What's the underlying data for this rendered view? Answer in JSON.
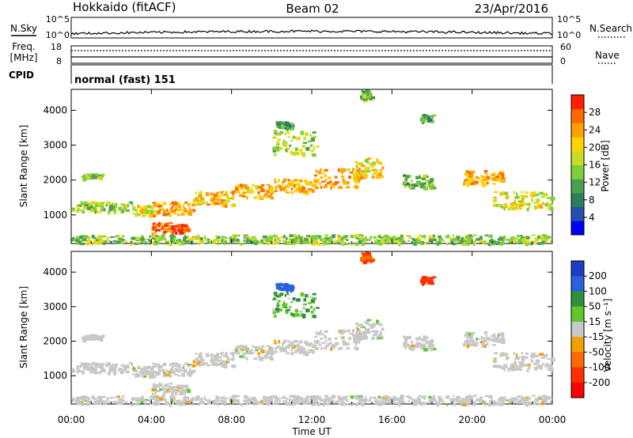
{
  "header": {
    "station": "Hokkaido (fitACF)",
    "beam": "Beam 02",
    "date": "23/Apr/2016"
  },
  "noise_panel": {
    "left_label": "N.Sky",
    "right_label": "N.Search",
    "left_ticks": [
      "10^5",
      "10^0"
    ],
    "right_ticks": [
      "10^5",
      "10^0"
    ]
  },
  "freq_panel": {
    "label_line1": "Freq.",
    "label_line2": "[MHz]",
    "right_label": "Nave",
    "left_ticks": [
      "18",
      "8"
    ],
    "right_ticks": [
      "60",
      "0"
    ]
  },
  "cpid_panel": {
    "label": "CPID",
    "text": "normal (fast) 151"
  },
  "power_panel": {
    "ylabel": "Slant Range [km]",
    "yticks": [
      "1000",
      "2000",
      "3000",
      "4000"
    ],
    "colorbar_label": "Power [dB]",
    "colorbar_ticks": [
      "4",
      "8",
      "12",
      "16",
      "20",
      "24",
      "28"
    ],
    "colors": [
      "#0000ff",
      "#2050b0",
      "#2e7d5a",
      "#4aa050",
      "#7fcf3a",
      "#c8dc28",
      "#ffd200",
      "#ffa000",
      "#ff6a00",
      "#ff2000"
    ]
  },
  "velocity_panel": {
    "ylabel": "Slant Range [km]",
    "yticks": [
      "1000",
      "2000",
      "3000",
      "4000"
    ],
    "colorbar_label": "Velocity [m s⁻¹]",
    "colorbar_ticks": [
      "200",
      "100",
      "50",
      "15",
      "-15",
      "-50",
      "-100",
      "-200"
    ],
    "colors": [
      "#1c3cc8",
      "#2a60d8",
      "#2f8f3a",
      "#5fc82a",
      "#c8c8c8",
      "#f0a000",
      "#ff6a00",
      "#ff3000",
      "#ff0000"
    ],
    "ground_color": "#c8c8c8"
  },
  "time_axis": {
    "label": "Time UT",
    "ticks": [
      "00:00",
      "04:00",
      "08:00",
      "12:00",
      "16:00",
      "20:00",
      "00:00"
    ]
  },
  "chart_data": {
    "type": "heatmap",
    "x_range_hours": [
      0,
      24
    ],
    "y_range_km": [
      180,
      4600
    ],
    "power_range_db": [
      0,
      30
    ],
    "velocity_range_ms": [
      -250,
      250
    ],
    "scatter_bands": [
      {
        "t": [
          0.0,
          3.0
        ],
        "r": [
          1100,
          1400
        ],
        "power": 15,
        "velocity": -5
      },
      {
        "t": [
          0.5,
          1.5
        ],
        "r": [
          2050,
          2200
        ],
        "power": 13,
        "velocity": 0
      },
      {
        "t": [
          3.0,
          4.0
        ],
        "r": [
          1000,
          1300
        ],
        "power": 18,
        "velocity": -5
      },
      {
        "t": [
          4.0,
          5.8
        ],
        "r": [
          500,
          800
        ],
        "power": 27,
        "velocity": -10
      },
      {
        "t": [
          4.0,
          6.0
        ],
        "r": [
          1000,
          1400
        ],
        "power": 22,
        "velocity": -5
      },
      {
        "t": [
          6.0,
          8.0
        ],
        "r": [
          1300,
          1700
        ],
        "power": 20,
        "velocity": -5
      },
      {
        "t": [
          8.0,
          10.0
        ],
        "r": [
          1500,
          1900
        ],
        "power": 21,
        "velocity": -5
      },
      {
        "t": [
          10.0,
          12.0
        ],
        "r": [
          1650,
          2050
        ],
        "power": 22,
        "velocity": -10
      },
      {
        "t": [
          12.0,
          14.5
        ],
        "r": [
          1800,
          2350
        ],
        "power": 22,
        "velocity": -5
      },
      {
        "t": [
          14.0,
          15.5
        ],
        "r": [
          2100,
          2650
        ],
        "power": 19,
        "velocity": 0
      },
      {
        "t": [
          10.0,
          12.2
        ],
        "r": [
          2750,
          3450
        ],
        "power": 16,
        "velocity": 40
      },
      {
        "t": [
          10.2,
          11.0
        ],
        "r": [
          3500,
          3700
        ],
        "power": 10,
        "velocity": 150
      },
      {
        "t": [
          14.4,
          15.0
        ],
        "r": [
          4300,
          4600
        ],
        "power": 12,
        "velocity": -90
      },
      {
        "t": [
          17.4,
          18.0
        ],
        "r": [
          3700,
          3900
        ],
        "power": 10,
        "velocity": -150
      },
      {
        "t": [
          16.5,
          18.0
        ],
        "r": [
          1800,
          2200
        ],
        "power": 13,
        "velocity": 0
      },
      {
        "t": [
          19.5,
          21.5
        ],
        "r": [
          1900,
          2300
        ],
        "power": 22,
        "velocity": -5
      },
      {
        "t": [
          21.0,
          24.0
        ],
        "r": [
          1200,
          1700
        ],
        "power": 17,
        "velocity": -5
      },
      {
        "t": [
          0.0,
          24.0
        ],
        "r": [
          200,
          450
        ],
        "power": 14,
        "velocity": 0
      }
    ]
  }
}
